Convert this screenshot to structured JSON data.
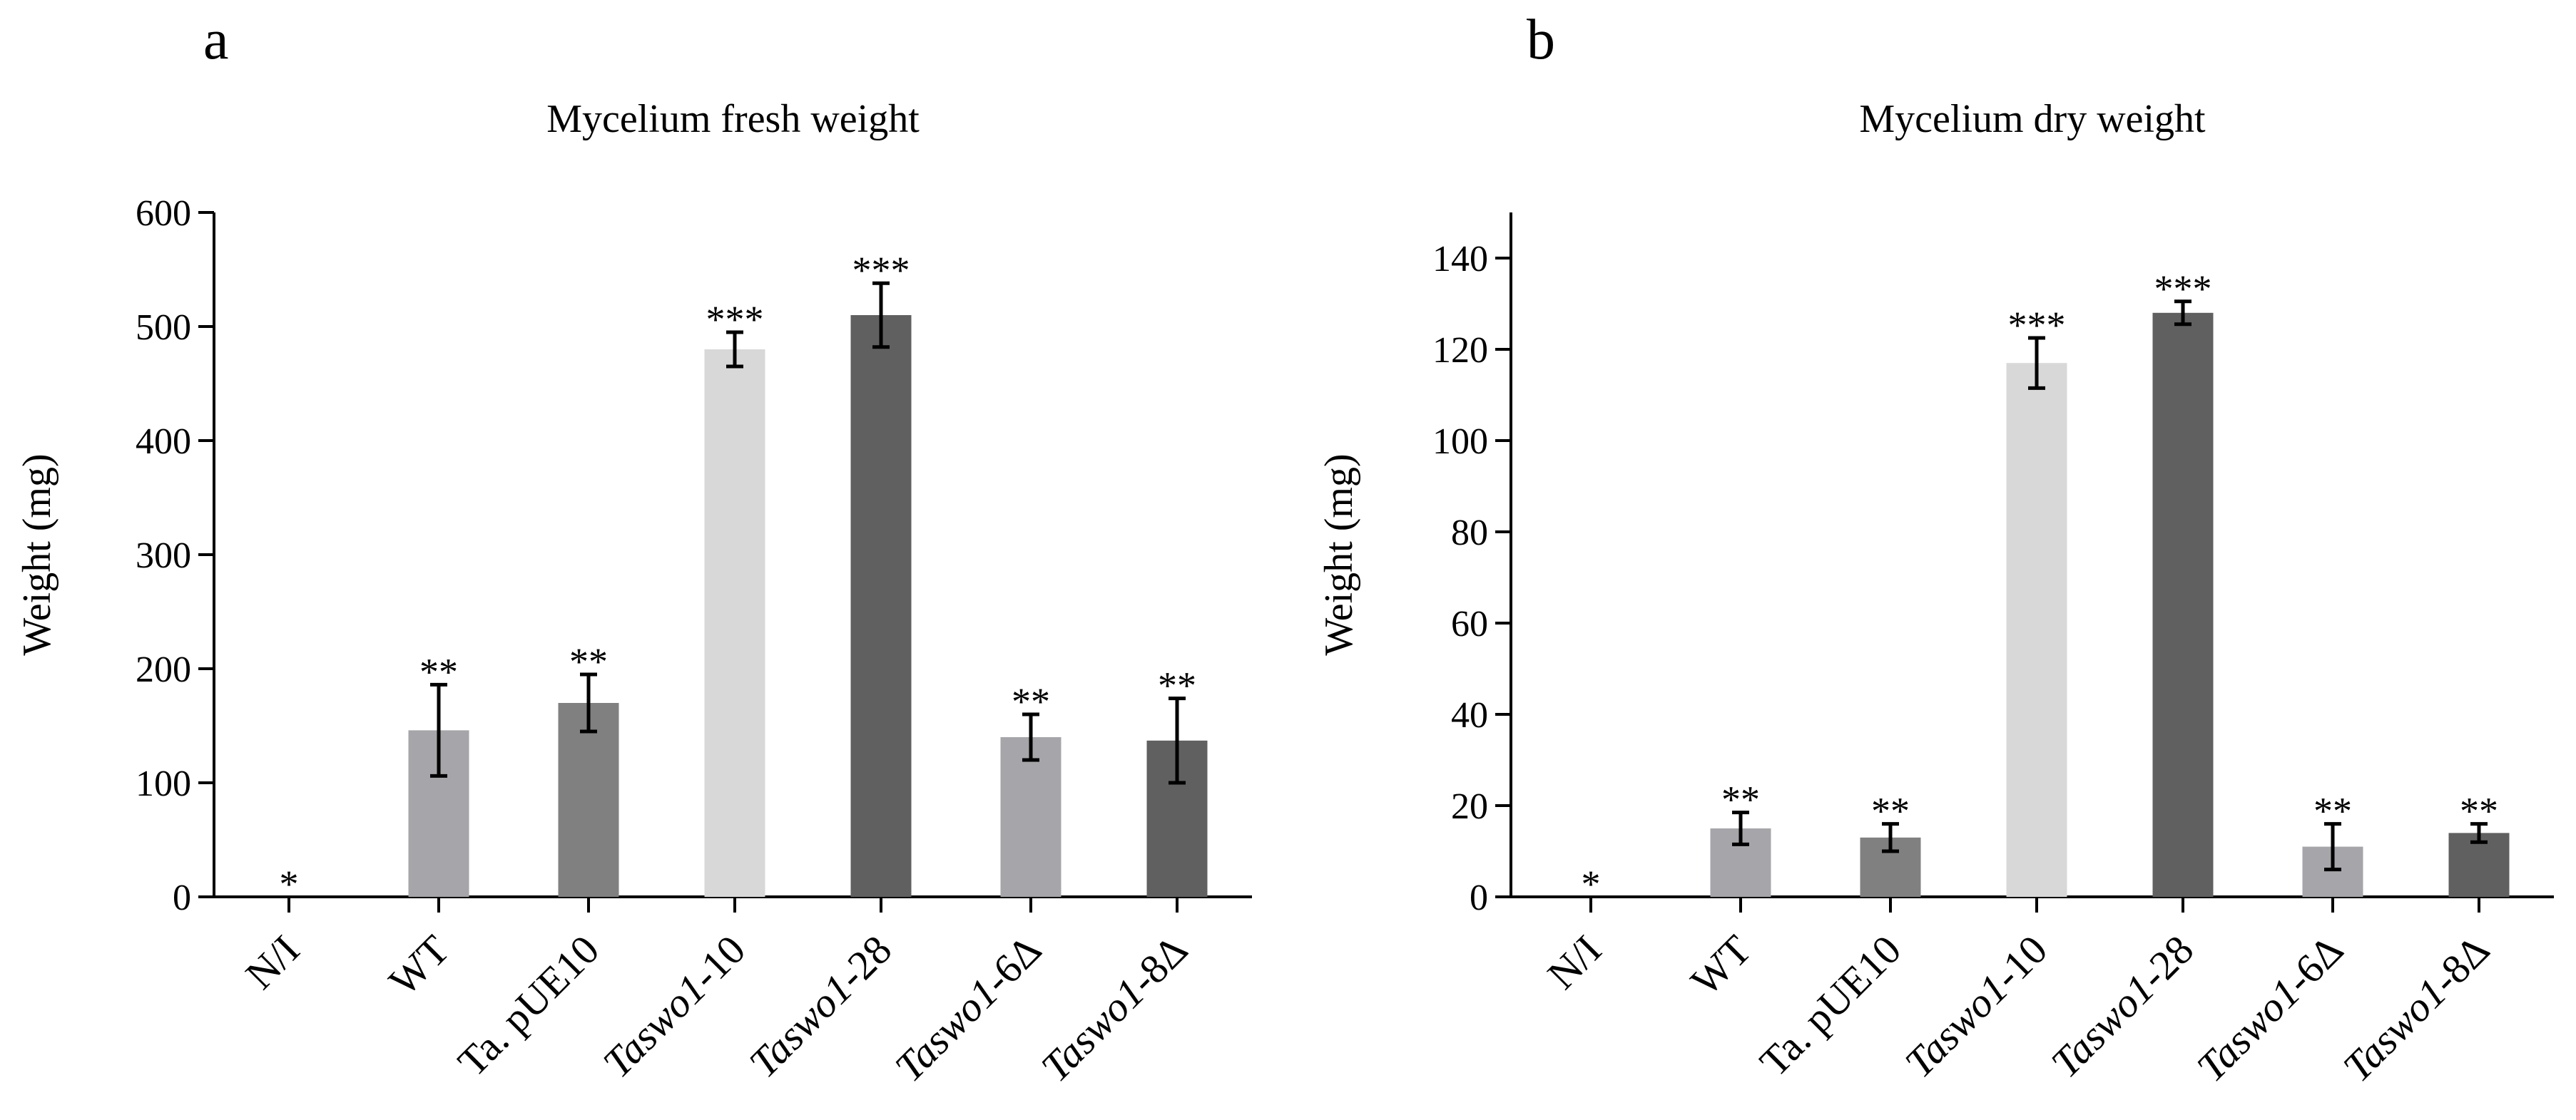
{
  "colors": {
    "N/I": "#a5a5aa",
    "WT": "#a5a5aa",
    "Ta. pUE10": "#808080",
    "Taswo1-10": "#d8d8d8",
    "Taswo1-28": "#606060",
    "Taswo1-6Δ": "#a5a5aa",
    "Taswo1-8Δ": "#606060"
  },
  "chart_data": [
    {
      "type": "bar",
      "panel": "a",
      "title": "Mycelium fresh weight",
      "xlabel": "",
      "ylabel": "Weight (mg)",
      "ylim": [
        0,
        600
      ],
      "yticks": [
        0,
        100,
        200,
        300,
        400,
        500,
        600
      ],
      "grid": false,
      "categories": [
        "N/I",
        "WT",
        "Ta. pUE10",
        "Taswo1-10",
        "Taswo1-28",
        "Taswo1-6Δ",
        "Taswo1-8Δ"
      ],
      "category_display": [
        {
          "italic": "",
          "plain": "N/I"
        },
        {
          "italic": "",
          "plain": "WT"
        },
        {
          "italic": "",
          "plain": "Ta. pUE10"
        },
        {
          "italic": "Taswo1",
          "plain": "-10"
        },
        {
          "italic": "Taswo1",
          "plain": "-28"
        },
        {
          "italic": "Taswo1",
          "plain": "-6Δ"
        },
        {
          "italic": "Taswo1",
          "plain": "-8Δ"
        }
      ],
      "values": [
        0,
        146,
        170,
        480,
        510,
        140,
        137
      ],
      "errors": [
        0,
        40,
        25,
        15,
        28,
        20,
        37
      ],
      "significance": [
        "*",
        "**",
        "**",
        "***",
        "***",
        "**",
        "**"
      ]
    },
    {
      "type": "bar",
      "panel": "b",
      "title": "Mycelium dry weight",
      "xlabel": "",
      "ylabel": "Weight (mg)",
      "ylim": [
        0,
        150
      ],
      "yticks": [
        0,
        20,
        40,
        60,
        80,
        100,
        120,
        140
      ],
      "grid": false,
      "categories": [
        "N/I",
        "WT",
        "Ta. pUE10",
        "Taswo1-10",
        "Taswo1-28",
        "Taswo1-6Δ",
        "Taswo1-8Δ"
      ],
      "category_display": [
        {
          "italic": "",
          "plain": "N/I"
        },
        {
          "italic": "",
          "plain": "WT"
        },
        {
          "italic": "",
          "plain": "Ta. pUE10"
        },
        {
          "italic": "Taswo1",
          "plain": "-10"
        },
        {
          "italic": "Taswo1",
          "plain": "-28"
        },
        {
          "italic": "Taswo1",
          "plain": "-6Δ"
        },
        {
          "italic": "Taswo1",
          "plain": "-8Δ"
        }
      ],
      "values": [
        0,
        15,
        13,
        117,
        128,
        11,
        14
      ],
      "errors": [
        0,
        3.5,
        3,
        5.5,
        2.5,
        5,
        2
      ],
      "significance": [
        "*",
        "**",
        "**",
        "***",
        "***",
        "**",
        "**"
      ]
    }
  ]
}
